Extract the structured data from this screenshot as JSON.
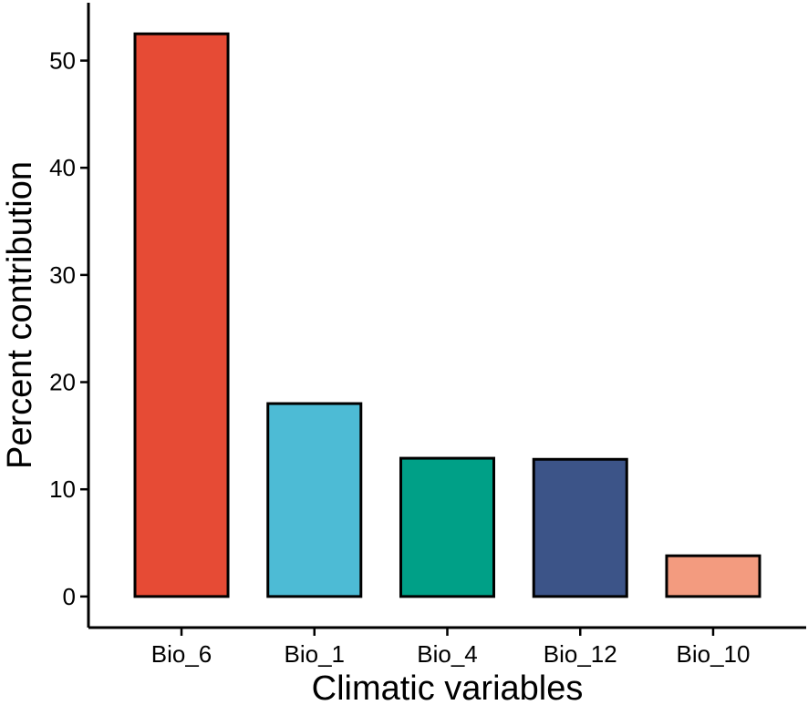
{
  "chart_data": {
    "type": "bar",
    "title": "",
    "xlabel": "Climatic variables",
    "ylabel": "Percent contribution",
    "categories": [
      "Bio_6",
      "Bio_1",
      "Bio_4",
      "Bio_12",
      "Bio_10"
    ],
    "values": [
      52.5,
      18.0,
      12.9,
      12.8,
      3.8
    ],
    "colors": [
      "#E64B35",
      "#4DBBD5",
      "#00A087",
      "#3C5488",
      "#F39B7F"
    ],
    "yticks": [
      0,
      10,
      20,
      30,
      40,
      50
    ],
    "ylim": [
      -2.9,
      55.4
    ],
    "grid": false,
    "legend": "none"
  }
}
